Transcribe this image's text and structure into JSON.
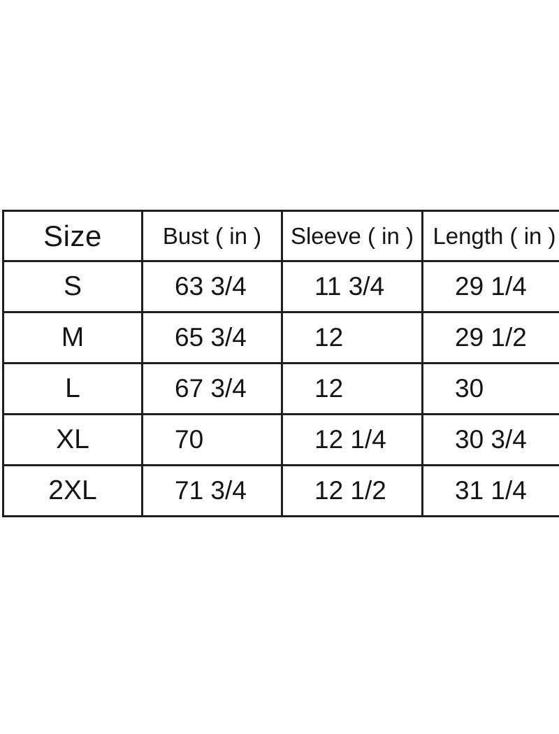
{
  "colors": {
    "background": "#ffffff",
    "border": "#1e1e1e",
    "text": "#141414"
  },
  "size_chart": {
    "columns": [
      "Size",
      "Bust ( in )",
      "Sleeve ( in )",
      "Length ( in )"
    ],
    "rows": [
      {
        "size": "S",
        "bust": "63 3/4",
        "sleeve": "11 3/4",
        "length": "29 1/4"
      },
      {
        "size": "M",
        "bust": "65 3/4",
        "sleeve": "12",
        "length": "29 1/2"
      },
      {
        "size": "L",
        "bust": "67 3/4",
        "sleeve": "12",
        "length": "30"
      },
      {
        "size": "XL",
        "bust": "70",
        "sleeve": "12 1/4",
        "length": "30 3/4"
      },
      {
        "size": "2XL",
        "bust": "71 3/4",
        "sleeve": "12 1/2",
        "length": "31 1/4"
      }
    ]
  },
  "chart_data": {
    "type": "table",
    "columns": [
      "Size",
      "Bust ( in )",
      "Sleeve ( in )",
      "Length ( in )"
    ],
    "rows": [
      [
        "S",
        "63 3/4",
        "11 3/4",
        "29 1/4"
      ],
      [
        "M",
        "65 3/4",
        "12",
        "29 1/2"
      ],
      [
        "L",
        "67 3/4",
        "12",
        "30"
      ],
      [
        "XL",
        "70",
        "12 1/4",
        "30 3/4"
      ],
      [
        "2XL",
        "71 3/4",
        "12 1/2",
        "31 1/4"
      ]
    ]
  }
}
